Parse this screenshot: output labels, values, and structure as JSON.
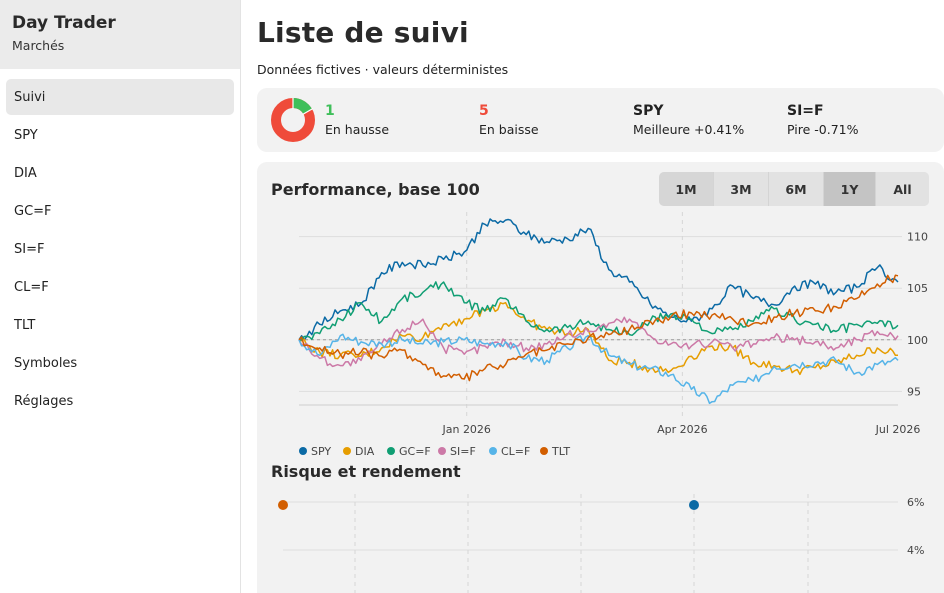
{
  "sidebar": {
    "app_title": "Day Trader",
    "app_subtitle": "Marchés",
    "items": [
      {
        "label": "Suivi",
        "active": true
      },
      {
        "label": "SPY"
      },
      {
        "label": "DIA"
      },
      {
        "label": "GC=F"
      },
      {
        "label": "SI=F"
      },
      {
        "label": "CL=F"
      },
      {
        "label": "TLT"
      },
      {
        "label": "Symboles"
      },
      {
        "label": "Réglages"
      }
    ]
  },
  "main": {
    "title": "Liste de suivi",
    "subtitle": "Données fictives · valeurs déterministes"
  },
  "stats": {
    "up_count": "1",
    "up_label": "En hausse",
    "down_count": "5",
    "down_label": "En baisse",
    "best_symbol": "SPY",
    "best_label": "Meilleure +0.41%",
    "worst_symbol": "SI=F",
    "worst_label": "Pire -0.71%",
    "colors": {
      "up": "#3fbf5a",
      "down": "#ef4b3a"
    }
  },
  "performance": {
    "title": "Performance, base 100",
    "ranges": [
      "1M",
      "3M",
      "6M",
      "1Y",
      "All"
    ],
    "selected_range": "1Y"
  },
  "risk": {
    "title": "Risque et rendement"
  },
  "chart_data": [
    {
      "type": "line",
      "title": "Performance, base 100",
      "x_ticks": [
        "Jan 2026",
        "Apr 2026",
        "Jul 2026"
      ],
      "y_ticks": [
        95,
        100,
        105,
        110
      ],
      "ylim": [
        93,
        112
      ],
      "reference_line": 100,
      "grid": true,
      "legend_placement": "bottom-left",
      "series": [
        {
          "name": "SPY",
          "color": "#0b6aa5",
          "values": [
            100,
            101.5,
            102.8,
            103.5,
            106.5,
            107.5,
            107.2,
            107.8,
            108.5,
            111.2,
            111.6,
            110.2,
            109.5,
            109.8,
            110.8,
            106.8,
            105.6,
            103.5,
            102.2,
            101.8,
            103.0,
            105.2,
            104.0,
            103.4,
            105.2,
            105.4,
            104.6,
            105.1,
            107.0,
            105.6
          ]
        },
        {
          "name": "DIA",
          "color": "#e69d00",
          "values": [
            100,
            98.8,
            98.5,
            98.4,
            99.2,
            100.4,
            100.2,
            101.5,
            102.0,
            102.8,
            103.6,
            101.8,
            101.0,
            100.6,
            101.0,
            98.0,
            97.8,
            97.2,
            97.0,
            98.4,
            99.4,
            99.2,
            97.8,
            97.5,
            97.0,
            97.3,
            97.8,
            98.5,
            99.2,
            98.5
          ]
        },
        {
          "name": "GC=F",
          "color": "#109e73",
          "values": [
            100,
            100.6,
            102.0,
            103.6,
            101.8,
            104.0,
            104.6,
            105.6,
            103.6,
            102.8,
            104.0,
            101.8,
            101.0,
            101.2,
            101.8,
            101.0,
            100.5,
            101.8,
            102.5,
            102.0,
            100.6,
            101.0,
            101.8,
            103.0,
            102.0,
            101.5,
            100.8,
            101.5,
            101.6,
            101.4
          ]
        },
        {
          "name": "SI=F",
          "color": "#cc79a7",
          "values": [
            100,
            98.2,
            97.5,
            98.0,
            99.6,
            101.0,
            102.0,
            99.2,
            98.6,
            99.4,
            99.8,
            99.2,
            99.6,
            100.5,
            100.8,
            101.6,
            102.0,
            100.4,
            99.6,
            99.4,
            99.8,
            99.2,
            99.6,
            100.2,
            100.0,
            99.8,
            99.2,
            100.0,
            100.8,
            100.4
          ]
        },
        {
          "name": "CL=F",
          "color": "#56b4e8",
          "values": [
            100,
            98.5,
            100.4,
            99.8,
            99.6,
            100.0,
            99.6,
            99.8,
            100.0,
            99.6,
            99.8,
            98.2,
            98.0,
            99.2,
            100.4,
            98.5,
            97.6,
            97.2,
            96.6,
            95.2,
            94.0,
            95.6,
            96.0,
            97.4,
            97.6,
            97.8,
            98.0,
            96.8,
            97.6,
            98.0
          ]
        },
        {
          "name": "TLT",
          "color": "#d25e00",
          "values": [
            100,
            99.2,
            98.6,
            98.8,
            98.4,
            99.0,
            97.6,
            96.5,
            96.2,
            97.2,
            97.6,
            98.6,
            99.0,
            99.6,
            100.2,
            100.5,
            101.0,
            101.8,
            102.2,
            102.6,
            102.4,
            102.0,
            101.6,
            102.2,
            102.6,
            102.8,
            103.2,
            104.0,
            105.4,
            106.2
          ]
        }
      ]
    },
    {
      "type": "scatter",
      "title": "Risque et rendement",
      "y_ticks": [
        "6%",
        "4%"
      ],
      "grid": true,
      "points": [
        {
          "name": "TLT",
          "color": "#d25e00",
          "y": 6
        },
        {
          "name": "SPY",
          "color": "#0b6aa5",
          "y": 6
        }
      ]
    }
  ]
}
